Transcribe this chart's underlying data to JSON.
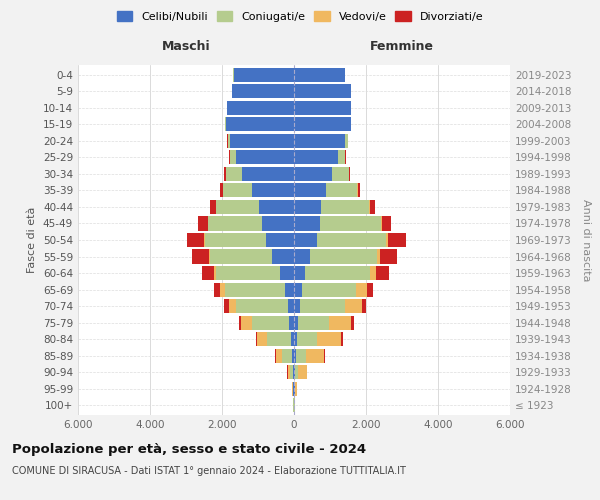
{
  "age_groups": [
    "100+",
    "95-99",
    "90-94",
    "85-89",
    "80-84",
    "75-79",
    "70-74",
    "65-69",
    "60-64",
    "55-59",
    "50-54",
    "45-49",
    "40-44",
    "35-39",
    "30-34",
    "25-29",
    "20-24",
    "15-19",
    "10-14",
    "5-9",
    "0-4"
  ],
  "birth_years": [
    "≤ 1923",
    "1924-1928",
    "1929-1933",
    "1934-1938",
    "1939-1943",
    "1944-1948",
    "1949-1953",
    "1954-1958",
    "1959-1963",
    "1964-1968",
    "1969-1973",
    "1974-1978",
    "1979-1983",
    "1984-1988",
    "1989-1993",
    "1994-1998",
    "1999-2003",
    "2004-2008",
    "2009-2013",
    "2014-2018",
    "2019-2023"
  ],
  "male_celibi": [
    8,
    15,
    25,
    50,
    90,
    130,
    170,
    240,
    380,
    600,
    780,
    900,
    980,
    1180,
    1450,
    1600,
    1780,
    1900,
    1850,
    1720,
    1680
  ],
  "male_coniugati": [
    8,
    25,
    75,
    270,
    650,
    1050,
    1450,
    1680,
    1780,
    1720,
    1680,
    1480,
    1180,
    780,
    430,
    180,
    55,
    10,
    4,
    4,
    4
  ],
  "male_vedovi": [
    4,
    18,
    75,
    180,
    280,
    280,
    190,
    140,
    75,
    55,
    38,
    18,
    9,
    4,
    4,
    4,
    9,
    4,
    4,
    0,
    0
  ],
  "male_divorziati": [
    2,
    4,
    9,
    18,
    28,
    75,
    140,
    170,
    330,
    470,
    470,
    265,
    170,
    95,
    47,
    19,
    9,
    4,
    0,
    0,
    0
  ],
  "female_nubili": [
    8,
    15,
    25,
    55,
    75,
    110,
    170,
    210,
    315,
    455,
    645,
    715,
    760,
    900,
    1045,
    1235,
    1425,
    1570,
    1570,
    1570,
    1425
  ],
  "female_coniugate": [
    8,
    25,
    95,
    270,
    570,
    855,
    1235,
    1520,
    1805,
    1855,
    1900,
    1710,
    1330,
    855,
    475,
    190,
    65,
    14,
    4,
    4,
    4
  ],
  "female_vedove": [
    4,
    47,
    235,
    520,
    665,
    615,
    475,
    285,
    150,
    85,
    55,
    28,
    19,
    9,
    4,
    4,
    4,
    4,
    0,
    0,
    0
  ],
  "female_divorziate": [
    2,
    4,
    9,
    18,
    38,
    75,
    110,
    170,
    360,
    475,
    520,
    245,
    150,
    75,
    38,
    19,
    9,
    4,
    0,
    0,
    0
  ],
  "colors_celibi": "#4472C4",
  "colors_coniugati": "#b5cc8e",
  "colors_vedovi": "#f0b860",
  "colors_divorziati": "#cc2222",
  "xlim": 6000,
  "xtick_vals": [
    -6000,
    -4000,
    -2000,
    0,
    2000,
    4000,
    6000
  ],
  "xtick_labels": [
    "6.000",
    "4.000",
    "2.000",
    "0",
    "2.000",
    "4.000",
    "6.000"
  ],
  "title": "Popolazione per età, sesso e stato civile - 2024",
  "subtitle": "COMUNE DI SIRACUSA - Dati ISTAT 1° gennaio 2024 - Elaborazione TUTTITALIA.IT",
  "label_maschi": "Maschi",
  "label_femmine": "Femmine",
  "ylabel_left": "Fasce di età",
  "ylabel_right": "Anni di nascita",
  "bg_color": "#f2f2f2",
  "plot_bg": "#ffffff",
  "legend_labels": [
    "Celibi/Nubili",
    "Coniugati/e",
    "Vedovi/e",
    "Divorziati/e"
  ]
}
